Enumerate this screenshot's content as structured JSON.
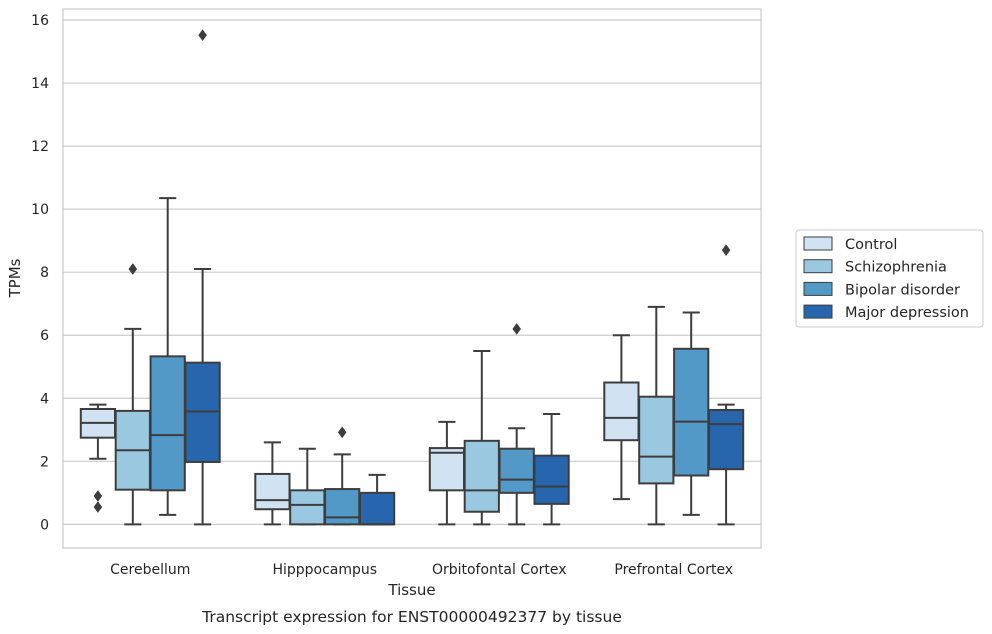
{
  "chart_data": {
    "type": "box",
    "caption": "Transcript expression for ENST00000492377 by tissue",
    "xlabel": "Tissue",
    "ylabel": "TPMs",
    "ylim": [
      -0.75,
      16.35
    ],
    "yticks": [
      0,
      2,
      4,
      6,
      8,
      10,
      12,
      14,
      16
    ],
    "grid": "horizontal",
    "legend_position": "right",
    "categories": [
      "Cerebellum",
      "Hipppocampus",
      "Orbitofontal Cortex",
      "Prefrontal Cortex"
    ],
    "series": [
      {
        "name": "Control",
        "color": "#d1e2f2",
        "boxes": [
          {
            "min": 2.08,
            "q1": 2.75,
            "median": 3.22,
            "q3": 3.66,
            "max": 3.8,
            "outliers": [
              0.9,
              0.55
            ]
          },
          {
            "min": 0.0,
            "q1": 0.48,
            "median": 0.77,
            "q3": 1.6,
            "max": 2.6,
            "outliers": []
          },
          {
            "min": 0.0,
            "q1": 1.08,
            "median": 2.27,
            "q3": 2.42,
            "max": 3.25,
            "outliers": []
          },
          {
            "min": 0.8,
            "q1": 2.67,
            "median": 3.38,
            "q3": 4.5,
            "max": 6.0,
            "outliers": []
          }
        ]
      },
      {
        "name": "Schizophrenia",
        "color": "#9ac8e0",
        "boxes": [
          {
            "min": 0.0,
            "q1": 1.1,
            "median": 2.35,
            "q3": 3.6,
            "max": 6.2,
            "outliers": [
              8.1
            ]
          },
          {
            "min": 0.0,
            "q1": 0.0,
            "median": 0.62,
            "q3": 1.08,
            "max": 2.4,
            "outliers": []
          },
          {
            "min": 0.0,
            "q1": 0.4,
            "median": 1.08,
            "q3": 2.65,
            "max": 5.5,
            "outliers": []
          },
          {
            "min": 0.0,
            "q1": 1.3,
            "median": 2.15,
            "q3": 4.05,
            "max": 6.9,
            "outliers": []
          }
        ]
      },
      {
        "name": "Bipolar disorder",
        "color": "#5299c7",
        "boxes": [
          {
            "min": 0.3,
            "q1": 1.08,
            "median": 2.83,
            "q3": 5.33,
            "max": 10.35,
            "outliers": []
          },
          {
            "min": 0.0,
            "q1": 0.0,
            "median": 0.22,
            "q3": 1.12,
            "max": 2.22,
            "outliers": [
              2.92
            ]
          },
          {
            "min": 0.0,
            "q1": 1.0,
            "median": 1.42,
            "q3": 2.4,
            "max": 3.05,
            "outliers": [
              6.2
            ]
          },
          {
            "min": 0.3,
            "q1": 1.55,
            "median": 3.26,
            "q3": 5.57,
            "max": 6.72,
            "outliers": []
          }
        ]
      },
      {
        "name": "Major depression",
        "color": "#2766ad",
        "boxes": [
          {
            "min": 0.0,
            "q1": 1.98,
            "median": 3.58,
            "q3": 5.13,
            "max": 8.1,
            "outliers": [
              15.52
            ]
          },
          {
            "min": 0.0,
            "q1": 0.0,
            "median": 0.0,
            "q3": 1.0,
            "max": 1.57,
            "outliers": []
          },
          {
            "min": 0.0,
            "q1": 0.65,
            "median": 1.2,
            "q3": 2.18,
            "max": 3.5,
            "outliers": []
          },
          {
            "min": 0.0,
            "q1": 1.75,
            "median": 3.18,
            "q3": 3.63,
            "max": 3.8,
            "outliers": [
              8.7
            ]
          }
        ]
      }
    ]
  }
}
